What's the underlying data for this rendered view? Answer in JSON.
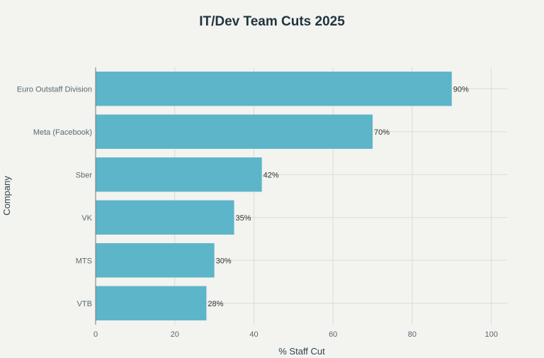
{
  "chart_data": {
    "type": "bar",
    "orientation": "horizontal",
    "title": "IT/Dev Team Cuts 2025",
    "xlabel": "% Staff Cut",
    "ylabel": "Company",
    "categories": [
      "Euro Outstaff Division",
      "Meta (Facebook)",
      "Sber",
      "VK",
      "MTS",
      "VTB"
    ],
    "values": [
      90,
      70,
      42,
      35,
      30,
      28
    ],
    "data_labels": [
      "90%",
      "70%",
      "42%",
      "35%",
      "30%",
      "28%"
    ],
    "xlim": [
      0,
      104
    ],
    "xticks": [
      0,
      20,
      40,
      60,
      80,
      100
    ],
    "xtick_labels": [
      "0",
      "20",
      "40",
      "60",
      "80",
      "100"
    ],
    "grid": true,
    "bar_color": "#5cb5c9"
  }
}
